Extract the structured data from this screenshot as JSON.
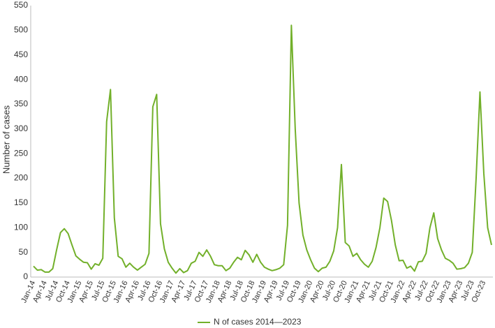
{
  "chart_data": {
    "type": "line",
    "y_label": "Number of cases",
    "categories": [
      "Jan-14",
      null,
      null,
      "Apr-14",
      null,
      null,
      "Jul-14",
      null,
      null,
      "Oct-14",
      null,
      null,
      "Jan-15",
      null,
      null,
      "Apr-15",
      null,
      null,
      "Jul-15",
      null,
      null,
      "Oct-15",
      null,
      null,
      "Jan-16",
      null,
      null,
      "Apr-16",
      null,
      null,
      "Jul-16",
      null,
      null,
      "Oct-16",
      null,
      null,
      "Jan-17",
      null,
      null,
      "Apr-17",
      null,
      null,
      "Jul-17",
      null,
      null,
      "Oct-17",
      null,
      null,
      "Jan-18",
      null,
      null,
      "Apr-18",
      null,
      null,
      "Jul-18",
      null,
      null,
      "Oct-18",
      null,
      null,
      "Jan-19",
      null,
      null,
      "Apr-19",
      null,
      null,
      "Jul-19",
      null,
      null,
      "Oct-19",
      null,
      null,
      "Jan-20",
      null,
      null,
      "Apr-20",
      null,
      null,
      "Jul-20",
      null,
      null,
      "Oct-20",
      null,
      null,
      "Jan-21",
      null,
      null,
      "Apr-21",
      null,
      null,
      "Jul-21",
      null,
      null,
      "Oct-21",
      null,
      null,
      "Jan-22",
      null,
      null,
      "Apr-22",
      null,
      null,
      "Jul-22",
      null,
      null,
      "Oct-22",
      null,
      null,
      "Jan-23",
      null,
      null,
      "Apr-23",
      null,
      null,
      "Jul-23",
      null,
      null,
      "Oct-23",
      null,
      null
    ],
    "series": [
      {
        "name": "N of cases 2014—2023",
        "color": "#72b02a",
        "values": [
          22,
          14,
          15,
          10,
          10,
          17,
          55,
          90,
          98,
          88,
          65,
          43,
          36,
          30,
          29,
          16,
          27,
          24,
          38,
          315,
          380,
          120,
          42,
          37,
          20,
          28,
          20,
          14,
          20,
          26,
          48,
          345,
          370,
          108,
          57,
          30,
          18,
          8,
          17,
          9,
          13,
          28,
          32,
          50,
          42,
          55,
          42,
          25,
          23,
          23,
          13,
          18,
          30,
          40,
          35,
          54,
          45,
          30,
          46,
          30,
          20,
          16,
          13,
          15,
          18,
          25,
          105,
          510,
          300,
          150,
          85,
          55,
          35,
          18,
          11,
          18,
          20,
          32,
          53,
          100,
          228,
          70,
          63,
          42,
          48,
          35,
          26,
          20,
          32,
          60,
          100,
          160,
          153,
          115,
          65,
          33,
          34,
          18,
          22,
          12,
          31,
          32,
          48,
          100,
          130,
          78,
          55,
          38,
          34,
          28,
          16,
          17,
          19,
          28,
          50,
          200,
          375,
          210,
          100,
          65
        ]
      }
    ],
    "ylim": [
      0,
      550
    ],
    "yticks": [
      0,
      50,
      100,
      150,
      200,
      250,
      300,
      350,
      400,
      450,
      500,
      550
    ],
    "grid": false,
    "legend": "bottom"
  }
}
